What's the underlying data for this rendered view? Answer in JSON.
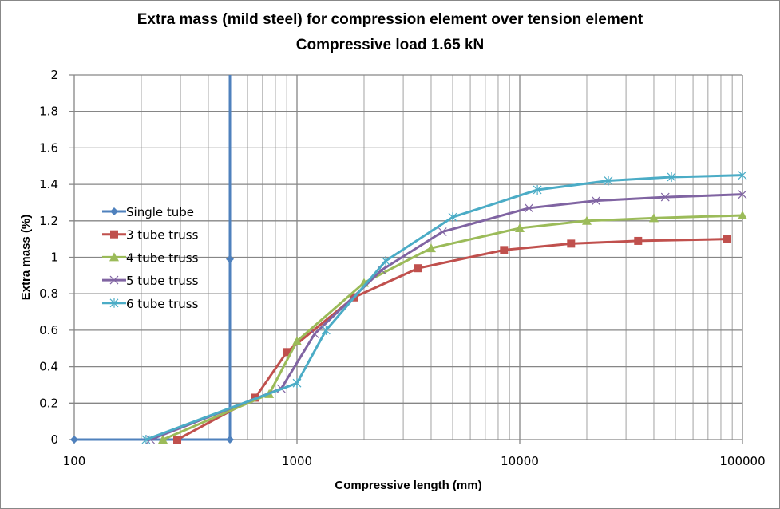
{
  "chart_data": {
    "type": "line",
    "title": "Extra mass (mild steel) for compression element over tension element",
    "subtitle": "Compressive load 1.65 kN",
    "xlabel": "Compressive length (mm)",
    "ylabel": "Extra mass (%)",
    "xscale": "log",
    "xlim": [
      100,
      100000
    ],
    "ylim": [
      0,
      2
    ],
    "x_ticks": [
      "100",
      "1000",
      "10000",
      "100000"
    ],
    "y_ticks": [
      "0",
      "0.2",
      "0.4",
      "0.6",
      "0.8",
      "1",
      "1.2",
      "1.4",
      "1.6",
      "1.8",
      "2"
    ],
    "grid": true,
    "legend_position": "left-middle",
    "series": [
      {
        "name": "Single tube",
        "color": "#4F81BD",
        "marker": "diamond",
        "x": [
          100,
          500,
          500,
          500
        ],
        "y": [
          0,
          0,
          0.99,
          2
        ]
      },
      {
        "name": "3 tube truss",
        "color": "#C0504D",
        "marker": "square",
        "x": [
          290,
          650,
          900,
          1800,
          3500,
          8500,
          17000,
          34000,
          85000
        ],
        "y": [
          0,
          0.23,
          0.48,
          0.78,
          0.94,
          1.04,
          1.075,
          1.09,
          1.1
        ]
      },
      {
        "name": "4 tube truss",
        "color": "#9BBB59",
        "marker": "triangle",
        "x": [
          250,
          750,
          1000,
          2000,
          4000,
          10000,
          20000,
          40000,
          100000
        ],
        "y": [
          0,
          0.25,
          0.54,
          0.86,
          1.05,
          1.16,
          1.2,
          1.215,
          1.23
        ]
      },
      {
        "name": "5 tube truss",
        "color": "#8064A2",
        "marker": "x",
        "x": [
          220,
          850,
          1200,
          2400,
          4500,
          11000,
          22000,
          45000,
          100000
        ],
        "y": [
          0,
          0.28,
          0.58,
          0.93,
          1.14,
          1.27,
          1.31,
          1.33,
          1.345
        ]
      },
      {
        "name": "6 tube truss",
        "color": "#4BACC6",
        "marker": "star",
        "x": [
          210,
          1000,
          1350,
          2500,
          5000,
          12000,
          25000,
          48000,
          100000
        ],
        "y": [
          0,
          0.31,
          0.6,
          0.98,
          1.22,
          1.37,
          1.42,
          1.44,
          1.45
        ]
      }
    ]
  }
}
